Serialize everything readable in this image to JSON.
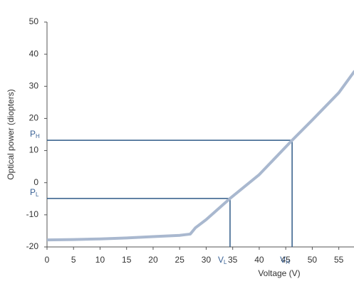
{
  "chart_data": {
    "type": "line",
    "x_label": "Voltage (V)",
    "y_label": "Optical power (diopters)",
    "x": [
      0,
      5,
      10,
      15,
      20,
      25,
      27,
      28,
      30,
      34.5,
      40,
      46.2,
      50,
      55,
      58
    ],
    "series": [
      {
        "color": "#a9b8cf",
        "values": [
          -17.8,
          -17.7,
          -17.5,
          -17.2,
          -16.8,
          -16.4,
          -16,
          -14,
          -11.5,
          -4.9,
          2.5,
          13.2,
          19.5,
          28,
          34.8
        ]
      }
    ],
    "xlim": [
      0,
      58
    ],
    "ylim": [
      -20,
      50
    ],
    "xticks": [
      0,
      5,
      10,
      15,
      20,
      25,
      30,
      35,
      40,
      45,
      50,
      55
    ],
    "yticks": [
      -20,
      -10,
      0,
      10,
      20,
      30,
      40,
      50
    ],
    "grid": false,
    "operating_points": [
      {
        "x": 34.5,
        "y": -4.9,
        "x_symbol": "V",
        "x_subscript": "L",
        "y_symbol": "P",
        "y_subscript": "L",
        "color": "#2e5a87"
      },
      {
        "x": 46.2,
        "y": 13.2,
        "x_symbol": "V",
        "x_subscript": "H",
        "y_symbol": "P",
        "y_subscript": "H",
        "color": "#2e5a87"
      }
    ]
  }
}
